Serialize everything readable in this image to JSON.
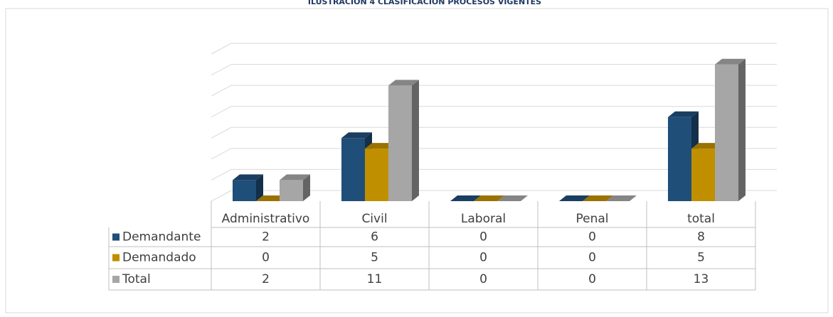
{
  "chart_data": {
    "type": "bar3d",
    "title": "ILUSTRACIÓN 4 CLASIFICACIÓN PROCESOS VIGENTES",
    "categories": [
      "Administrativo",
      "Civil",
      "Laboral",
      "Penal",
      "total"
    ],
    "series": [
      {
        "name": "Demandante",
        "color": "#1f4e79",
        "values": [
          2,
          6,
          0,
          0,
          8
        ]
      },
      {
        "name": "Demandado",
        "color": "#c08f00",
        "values": [
          0,
          5,
          0,
          0,
          5
        ]
      },
      {
        "name": "Total",
        "color": "#a6a6a6",
        "values": [
          2,
          11,
          0,
          0,
          13
        ]
      }
    ],
    "ylim": [
      0,
      14
    ],
    "yticks": [
      0,
      2,
      4,
      6,
      8,
      10,
      12,
      14
    ],
    "grid": true
  }
}
